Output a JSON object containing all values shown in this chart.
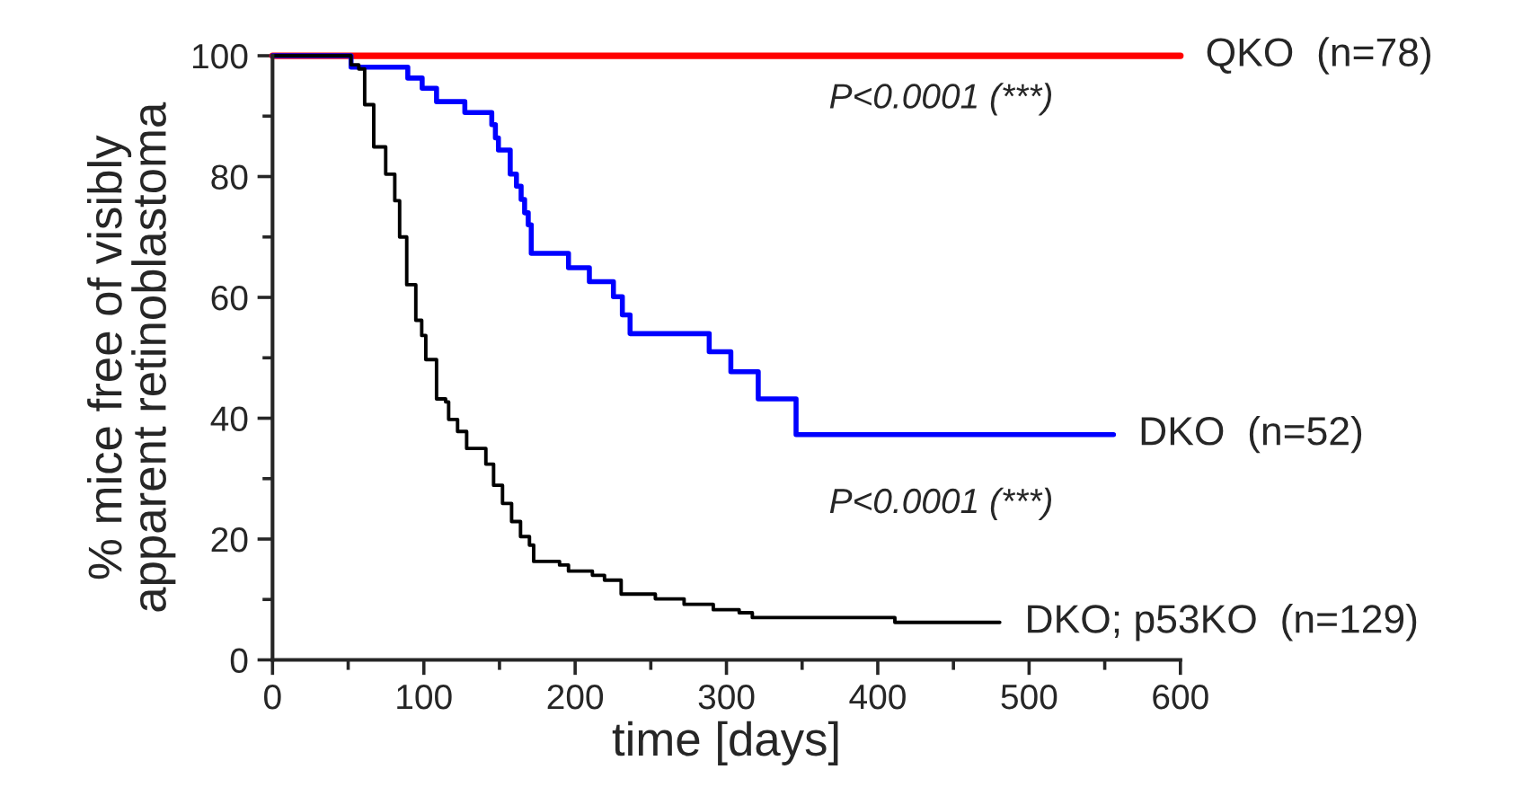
{
  "chart_data": {
    "type": "step",
    "xlabel": "time [days]",
    "ylabel": "% mice free of visibly\napparent retinoblastoma",
    "xlim": [
      0,
      600
    ],
    "ylim": [
      0,
      100
    ],
    "xticks": [
      0,
      {
        "value": 50,
        "label": null
      },
      100,
      {
        "value": 150,
        "label": null
      },
      200,
      {
        "value": 250,
        "label": null
      },
      300,
      {
        "value": 350,
        "label": null
      },
      400,
      {
        "value": 450,
        "label": null
      },
      500,
      {
        "value": 550,
        "label": null
      },
      600
    ],
    "yticks": [
      0,
      {
        "value": 10,
        "label": null
      },
      20,
      {
        "value": 30,
        "label": null
      },
      40,
      {
        "value": 50,
        "label": null
      },
      60,
      {
        "value": 70,
        "label": null
      },
      80,
      {
        "value": 90,
        "label": null
      },
      100
    ],
    "grid": false,
    "legend": false,
    "marker": "none",
    "line_style": "solid",
    "series": [
      {
        "name": "QKO  (n=78)",
        "color": "#ff0000",
        "x": [
          0,
          600
        ],
        "values": [
          100,
          100
        ]
      },
      {
        "name": "DKO  (n=52)",
        "color": "#0000ff",
        "x": [
          0,
          51.9,
          89.4,
          98.9,
          108.4,
          127.1,
          144.9,
          147.3,
          149.3,
          157.1,
          161.2,
          164.3,
          166.6,
          169,
          171,
          195.6,
          209.4,
          225.3,
          231.2,
          236.3,
          288.6,
          302.9,
          321,
          346,
          555.8
        ],
        "values": [
          100,
          98.1,
          96.3,
          94.6,
          92.4,
          90.6,
          88.6,
          86.4,
          84.4,
          80.4,
          78.4,
          76.2,
          74.0,
          72.0,
          67.3,
          64.9,
          62.6,
          60.1,
          57.1,
          54.0,
          51.0,
          47.7,
          43.2,
          37.3,
          37.3
        ]
      },
      {
        "name": "DKO; p53KO  (n=129)",
        "color": "#000000",
        "x": [
          0,
          51.9,
          57.0,
          60.9,
          66.9,
          74.8,
          80.8,
          84.0,
          88.7,
          94.7,
          98.6,
          101.3,
          108.4,
          114.4,
          116.4,
          122.3,
          128.3,
          141,
          146.1,
          152,
          158,
          163.9,
          169.8,
          172.6,
          189.7,
          195.6,
          211.4,
          219.4,
          230.4,
          253,
          272,
          291.3,
          308.4,
          317.1,
          411.3,
          480.6
        ],
        "values": [
          100,
          98.5,
          97.8,
          91.9,
          84.9,
          80.4,
          76.0,
          70.0,
          62.1,
          56.2,
          53.7,
          49.7,
          43.2,
          42.7,
          39.8,
          37.8,
          35.0,
          32.4,
          28.9,
          25.9,
          22.9,
          20.4,
          19.0,
          16.3,
          15.7,
          14.7,
          14.0,
          13.2,
          10.9,
          10.1,
          9.2,
          8.3,
          7.8,
          7.0,
          6.2,
          6.2
        ]
      }
    ],
    "annotations": [
      "P<0.0001 (***)",
      "P<0.0001 (***)"
    ]
  }
}
